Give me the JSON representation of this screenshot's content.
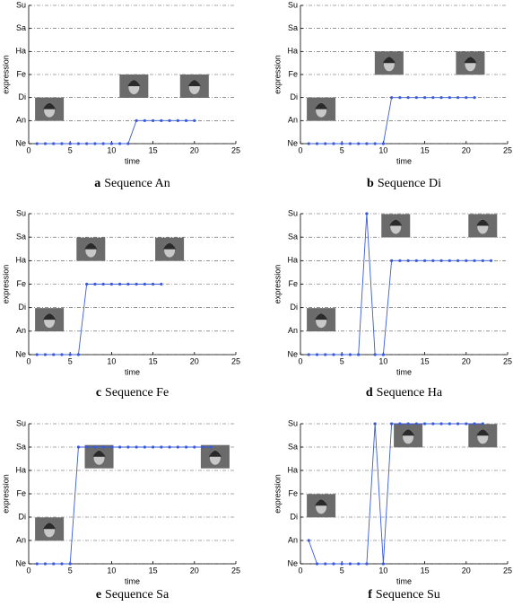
{
  "chart_data": [
    {
      "type": "line",
      "label": "a",
      "title": "Sequence An",
      "xlabel": "time",
      "ylabel": "expression",
      "color": "#3b5bd6",
      "grid": true,
      "xlim": [
        0,
        25
      ],
      "xticks": [
        0,
        5,
        10,
        15,
        20,
        25
      ],
      "ylim": [
        0,
        6
      ],
      "yticks": [
        {
          "value": 0,
          "label": "Ne"
        },
        {
          "value": 1,
          "label": "An"
        },
        {
          "value": 2,
          "label": "Di"
        },
        {
          "value": 3,
          "label": "Fe"
        },
        {
          "value": 4,
          "label": "Ha"
        },
        {
          "value": 5,
          "label": "Sa"
        },
        {
          "value": 6,
          "label": "Su"
        }
      ],
      "x": [
        1,
        2,
        3,
        4,
        5,
        6,
        7,
        8,
        9,
        10,
        11,
        12,
        13,
        14,
        15,
        16,
        17,
        18,
        19,
        20
      ],
      "values": [
        0,
        0,
        0,
        0,
        0,
        0,
        0,
        0,
        0,
        0,
        0,
        0,
        1,
        1,
        1,
        1,
        1,
        1,
        1,
        1
      ]
    },
    {
      "type": "line",
      "label": "b",
      "title": "Sequence Di",
      "xlabel": "time",
      "ylabel": "expression",
      "color": "#3b5bd6",
      "grid": true,
      "xlim": [
        0,
        25
      ],
      "xticks": [
        0,
        5,
        10,
        15,
        20,
        25
      ],
      "ylim": [
        0,
        6
      ],
      "yticks": [
        {
          "value": 0,
          "label": "Ne"
        },
        {
          "value": 1,
          "label": "An"
        },
        {
          "value": 2,
          "label": "Di"
        },
        {
          "value": 3,
          "label": "Fe"
        },
        {
          "value": 4,
          "label": "Ha"
        },
        {
          "value": 5,
          "label": "Sa"
        },
        {
          "value": 6,
          "label": "Su"
        }
      ],
      "x": [
        1,
        2,
        3,
        4,
        5,
        6,
        7,
        8,
        9,
        10,
        11,
        12,
        13,
        14,
        15,
        16,
        17,
        18,
        19,
        20,
        21
      ],
      "values": [
        0,
        0,
        0,
        0,
        0,
        0,
        0,
        0,
        0,
        0,
        2,
        2,
        2,
        2,
        2,
        2,
        2,
        2,
        2,
        2,
        2
      ]
    },
    {
      "type": "line",
      "label": "c",
      "title": "Sequence Fe",
      "xlabel": "time",
      "ylabel": "expression",
      "color": "#3b5bd6",
      "grid": true,
      "xlim": [
        0,
        25
      ],
      "xticks": [
        0,
        5,
        10,
        15,
        20,
        25
      ],
      "ylim": [
        0,
        6
      ],
      "yticks": [
        {
          "value": 0,
          "label": "Ne"
        },
        {
          "value": 1,
          "label": "An"
        },
        {
          "value": 2,
          "label": "Di"
        },
        {
          "value": 3,
          "label": "Fe"
        },
        {
          "value": 4,
          "label": "Ha"
        },
        {
          "value": 5,
          "label": "Sa"
        },
        {
          "value": 6,
          "label": "Su"
        }
      ],
      "x": [
        1,
        2,
        3,
        4,
        5,
        6,
        7,
        8,
        9,
        10,
        11,
        12,
        13,
        14,
        15,
        16
      ],
      "values": [
        0,
        0,
        0,
        0,
        0,
        0,
        3,
        3,
        3,
        3,
        3,
        3,
        3,
        3,
        3,
        3
      ]
    },
    {
      "type": "line",
      "label": "d",
      "title": "Sequence Ha",
      "xlabel": "time",
      "ylabel": "expression",
      "color": "#3b5bd6",
      "grid": true,
      "xlim": [
        0,
        25
      ],
      "xticks": [
        0,
        5,
        10,
        15,
        20,
        25
      ],
      "ylim": [
        0,
        6
      ],
      "yticks": [
        {
          "value": 0,
          "label": "Ne"
        },
        {
          "value": 1,
          "label": "An"
        },
        {
          "value": 2,
          "label": "Di"
        },
        {
          "value": 3,
          "label": "Fe"
        },
        {
          "value": 4,
          "label": "Ha"
        },
        {
          "value": 5,
          "label": "Sa"
        },
        {
          "value": 6,
          "label": "Su"
        }
      ],
      "x": [
        1,
        2,
        3,
        4,
        5,
        6,
        7,
        8,
        9,
        10,
        11,
        12,
        13,
        14,
        15,
        16,
        17,
        18,
        19,
        20,
        21,
        22,
        23
      ],
      "values": [
        0,
        0,
        0,
        0,
        0,
        0,
        0,
        6,
        0,
        0,
        4,
        4,
        4,
        4,
        4,
        4,
        4,
        4,
        4,
        4,
        4,
        4,
        4
      ]
    },
    {
      "type": "line",
      "label": "e",
      "title": "Sequence Sa",
      "xlabel": "time",
      "ylabel": "expression",
      "color": "#3b5bd6",
      "grid": true,
      "xlim": [
        0,
        25
      ],
      "xticks": [
        0,
        5,
        10,
        15,
        20,
        25
      ],
      "ylim": [
        0,
        6
      ],
      "yticks": [
        {
          "value": 0,
          "label": "Ne"
        },
        {
          "value": 1,
          "label": "An"
        },
        {
          "value": 2,
          "label": "Di"
        },
        {
          "value": 3,
          "label": "Fe"
        },
        {
          "value": 4,
          "label": "Ha"
        },
        {
          "value": 5,
          "label": "Sa"
        },
        {
          "value": 6,
          "label": "Su"
        }
      ],
      "x": [
        1,
        2,
        3,
        4,
        5,
        6,
        7,
        8,
        9,
        10,
        11,
        12,
        13,
        14,
        15,
        16,
        17,
        18,
        19,
        20,
        21,
        22
      ],
      "values": [
        0,
        0,
        0,
        0,
        0,
        5,
        5,
        5,
        5,
        5,
        5,
        5,
        5,
        5,
        5,
        5,
        5,
        5,
        5,
        5,
        5,
        5
      ]
    },
    {
      "type": "line",
      "label": "f",
      "title": "Sequence Su",
      "xlabel": "time",
      "ylabel": "expression",
      "color": "#3b5bd6",
      "grid": true,
      "xlim": [
        0,
        25
      ],
      "xticks": [
        0,
        5,
        10,
        15,
        20,
        25
      ],
      "ylim": [
        0,
        6
      ],
      "yticks": [
        {
          "value": 0,
          "label": "Ne"
        },
        {
          "value": 1,
          "label": "An"
        },
        {
          "value": 2,
          "label": "Di"
        },
        {
          "value": 3,
          "label": "Fe"
        },
        {
          "value": 4,
          "label": "Ha"
        },
        {
          "value": 5,
          "label": "Sa"
        },
        {
          "value": 6,
          "label": "Su"
        }
      ],
      "x": [
        1,
        2,
        3,
        4,
        5,
        6,
        7,
        8,
        9,
        10,
        11,
        12,
        13,
        14,
        15,
        16,
        17,
        18,
        19,
        20,
        21,
        22
      ],
      "values": [
        1,
        0,
        0,
        0,
        0,
        0,
        0,
        0,
        6,
        0,
        6,
        6,
        6,
        6,
        6,
        6,
        6,
        6,
        6,
        6,
        6,
        6
      ]
    }
  ]
}
